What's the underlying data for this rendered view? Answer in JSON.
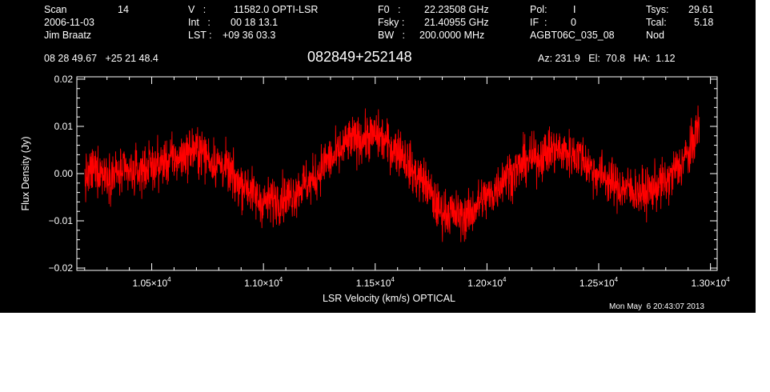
{
  "header": {
    "scan_label": "Scan",
    "scan_value": "14",
    "date": "2006-11-03",
    "observer": "Jim Braatz",
    "v_label": "V   :",
    "v_value": "11582.0 OPTI-LSR",
    "int_label": "Int   :",
    "int_value": "00 18 13.1",
    "lst_label": "LST :",
    "lst_value": "+09 36 03.3",
    "f0_label": "F0   :",
    "f0_value": "22.23508 GHz",
    "fsky_label": "Fsky :",
    "fsky_value": "21.40955 GHz",
    "bw_label": "BW   :",
    "bw_value": "200.0000 MHz",
    "pol_label": "Pol:",
    "pol_value": "I",
    "if_label": "IF  :",
    "if_value": "0",
    "project": "AGBT06C_035_08",
    "tsys_label": "Tsys:",
    "tsys_value": "29.61",
    "tcal_label": "Tcal:",
    "tcal_value": "5.18",
    "proc": "Nod",
    "coords": "08 28 49.67   +25 21 48.4",
    "source": "082849+252148",
    "azelha": "Az: 231.9   El:  70.8   HA:  1.12",
    "timestamp": "Mon May  6 20:43:07 2013"
  },
  "chart_data": {
    "type": "line",
    "xlabel": "LSR Velocity (km/s) OPTICAL",
    "ylabel": "Flux Density (Jy)",
    "xlim": [
      10165,
      13030
    ],
    "ylim": [
      -0.0205,
      0.0205
    ],
    "x_ticks": [
      {
        "value": 10500,
        "mant": "1.05",
        "exp": "4"
      },
      {
        "value": 11000,
        "mant": "1.10",
        "exp": "4"
      },
      {
        "value": 11500,
        "mant": "1.15",
        "exp": "4"
      },
      {
        "value": 12000,
        "mant": "1.20",
        "exp": "4"
      },
      {
        "value": 12500,
        "mant": "1.25",
        "exp": "4"
      },
      {
        "value": 13000,
        "mant": "1.30",
        "exp": "4"
      }
    ],
    "y_ticks": [
      {
        "value": 0.02,
        "label": "0.02"
      },
      {
        "value": 0.01,
        "label": "0.01"
      },
      {
        "value": 0.0,
        "label": "0.00"
      },
      {
        "value": -0.01,
        "label": "−0.01"
      },
      {
        "value": -0.02,
        "label": "−0.02"
      }
    ],
    "series": [
      {
        "color": "#ff0000",
        "x": [
          10200,
          10250,
          10300,
          10400,
          10500,
          10600,
          10700,
          10800,
          10900,
          11000,
          11100,
          11200,
          11300,
          11400,
          11500,
          11600,
          11700,
          11800,
          11900,
          12000,
          12100,
          12200,
          12300,
          12400,
          12500,
          12600,
          12700,
          12800,
          12850,
          12900,
          12950
        ],
        "y": [
          -0.001,
          0.001,
          0.0,
          0.0,
          0.0015,
          0.003,
          0.005,
          0.002,
          -0.002,
          -0.006,
          -0.005,
          -0.002,
          0.003,
          0.007,
          0.008,
          0.005,
          -0.001,
          -0.008,
          -0.009,
          -0.005,
          0.0,
          0.003,
          0.005,
          0.004,
          0.0,
          -0.003,
          -0.004,
          -0.002,
          0.001,
          0.004,
          0.01
        ],
        "noise_rms": 0.0025
      }
    ]
  }
}
